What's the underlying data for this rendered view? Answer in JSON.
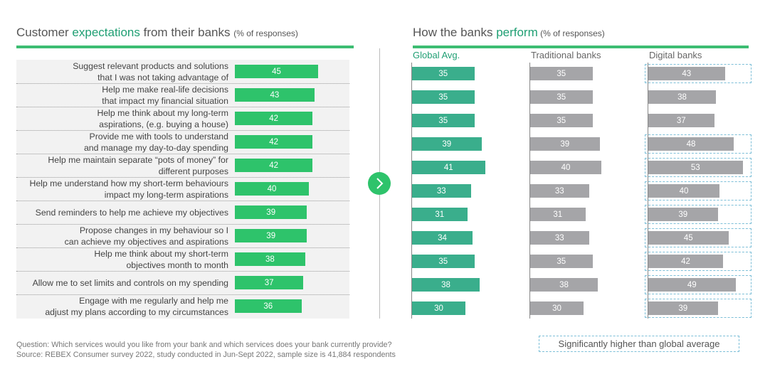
{
  "left_title": {
    "prefix": "Customer ",
    "highlight": "expectations",
    "suffix": " from their banks ",
    "note": "(% of responses)"
  },
  "right_title": {
    "prefix": "How the banks ",
    "highlight": "perform",
    "note": " (% of responses)"
  },
  "colors": {
    "accent_green": "#2ec36b",
    "title_green": "#1f9f73",
    "teal_bar": "#3aae8c",
    "grey_bar": "#a5a5a8",
    "highlight_border": "#7dbfd8",
    "panel_bg": "#f2f2f2"
  },
  "icons": {
    "arrow": "chevron-right-icon"
  },
  "chart_data": [
    {
      "type": "bar",
      "orientation": "horizontal",
      "categories": [
        [
          "Suggest relevant products and solutions",
          "that I was not taking advantage of"
        ],
        [
          "Help me make real-life decisions",
          "that impact my financial situation"
        ],
        [
          "Help me think about my long-term",
          "aspirations, (e.g. buying a house)"
        ],
        [
          "Provide me with tools to understand",
          "and manage my day-to-day spending"
        ],
        [
          "Help me maintain separate “pots of money” for",
          "different purposes"
        ],
        [
          "Help me understand how my short-term behaviours",
          "impact my long-term aspirations"
        ],
        [
          "Send reminders to help me achieve my objectives"
        ],
        [
          "Propose changes in my behaviour so I",
          "can achieve my objectives and aspirations"
        ],
        [
          "Help me think about my short-term",
          "objectives month to month"
        ],
        [
          "Allow me to set limits and controls on my spending"
        ],
        [
          "Engage with me regularly and help me",
          "adjust my plans according to my circumstances"
        ]
      ],
      "values": [
        45,
        43,
        42,
        42,
        42,
        40,
        39,
        39,
        38,
        37,
        36
      ],
      "xlim": [
        0,
        100
      ]
    },
    {
      "type": "bar",
      "orientation": "horizontal",
      "series": [
        {
          "name": "Global Avg.",
          "values": [
            35,
            35,
            35,
            39,
            41,
            33,
            31,
            34,
            35,
            38,
            30
          ]
        },
        {
          "name": "Traditional banks",
          "values": [
            35,
            35,
            35,
            39,
            40,
            33,
            31,
            33,
            35,
            38,
            30
          ]
        },
        {
          "name": "Digital banks",
          "values": [
            43,
            38,
            37,
            48,
            53,
            40,
            39,
            45,
            42,
            49,
            39
          ],
          "significantly_higher": [
            true,
            false,
            false,
            true,
            true,
            true,
            true,
            true,
            true,
            true,
            true
          ]
        }
      ],
      "legend": "Significantly higher than global average",
      "xlim": [
        0,
        100
      ]
    }
  ],
  "footnote": {
    "question": "Question: Which services would you like from your bank and which services does your bank currently provide?",
    "source": "Source: REBEX Consumer survey 2022, study conducted in Jun-Sept 2022, sample size is 41,884 respondents"
  }
}
